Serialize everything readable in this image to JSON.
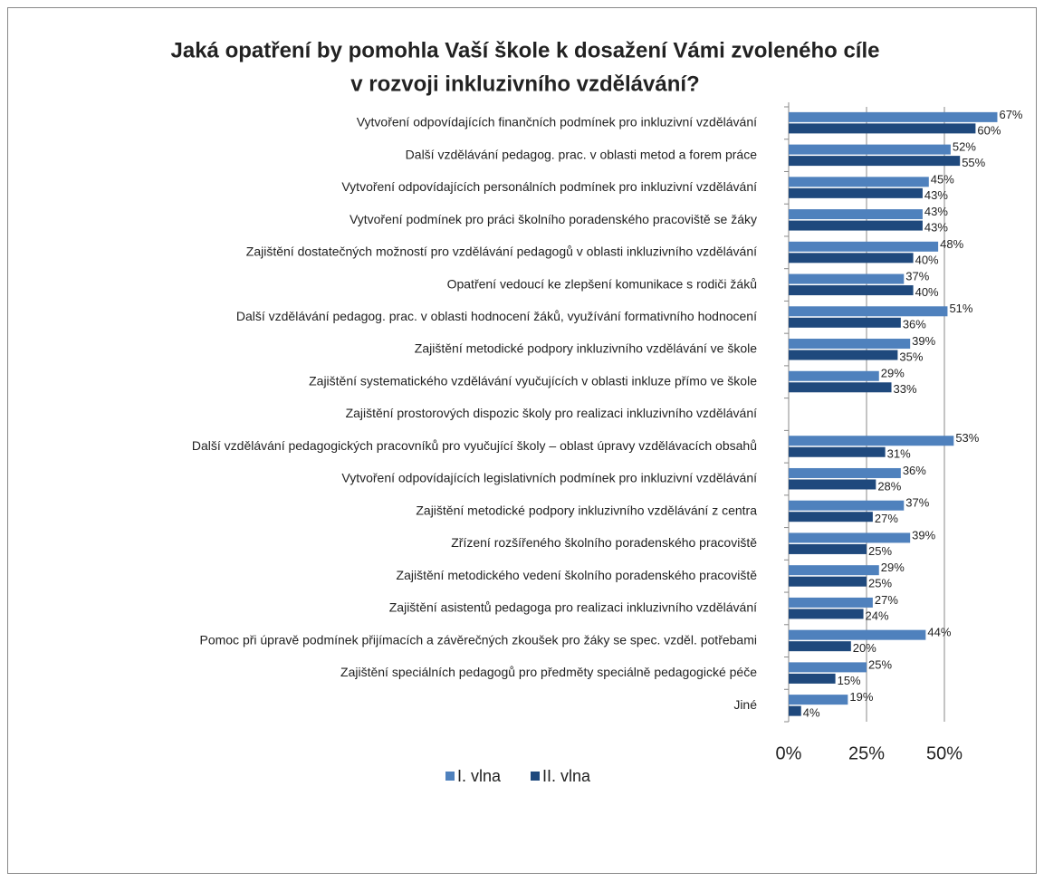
{
  "chart_data": {
    "type": "bar",
    "orientation": "horizontal",
    "title": [
      "Jaká opatření by pomohla Vaší škole k dosažení Vámi zvoleného cíle",
      "v rozvoji inkluzivního vzdělávání?"
    ],
    "categories": [
      "Vytvoření odpovídajících finančních podmínek pro inkluzivní vzdělávání",
      "Další vzdělávání pedagog. prac. v oblasti metod a forem práce",
      "Vytvoření odpovídajících personálních podmínek pro inkluzivní vzdělávání",
      "Vytvoření podmínek pro práci školního poradenského pracoviště se žáky",
      "Zajištění dostatečných možností pro vzdělávání pedagogů v oblasti inkluzivního vzdělávání",
      "Opatření vedoucí ke zlepšení komunikace s rodiči žáků",
      "Další vzdělávání pedagog. prac. v oblasti hodnocení žáků, využívání formativního hodnocení",
      "Zajištění metodické podpory inkluzivního vzdělávání ve škole",
      "Zajištění systematického vzdělávání vyučujících v oblasti inkluze přímo ve škole",
      "Zajištění prostorových dispozic školy pro realizaci inkluzivního vzdělávání",
      "Další vzdělávání pedagogických pracovníků pro vyučující školy – oblast úpravy vzdělávacích obsahů",
      "Vytvoření odpovídajících legislativních podmínek pro inkluzivní vzdělávání",
      "Zajištění metodické podpory inkluzivního vzdělávání z centra",
      "Zřízení rozšířeného školního poradenského pracoviště",
      "Zajištění metodického vedení školního poradenského pracoviště",
      "Zajištění asistentů pedagoga pro realizaci inkluzivního vzdělávání",
      "Pomoc při úpravě podmínek přijímacích a závěrečných zkoušek pro žáky se spec. vzděl. potřebami",
      "Zajištění speciálních pedagogů pro předměty speciálně pedagogické péče",
      "Jiné"
    ],
    "series": [
      {
        "name": "I. vlna",
        "color": "#4f81bd",
        "values": [
          67,
          52,
          45,
          43,
          48,
          37,
          51,
          39,
          29,
          null,
          53,
          36,
          37,
          39,
          29,
          27,
          44,
          25,
          19
        ],
        "value_labels": [
          "67%",
          "52%",
          "45%",
          "43%",
          "48%",
          "37%",
          "51%",
          "39%",
          "29%",
          null,
          "53%",
          "36%",
          "37%",
          "39%",
          "29%",
          "27%",
          "44%",
          "25%",
          "19%"
        ]
      },
      {
        "name": "II. vlna",
        "color": "#1f497d",
        "values": [
          60,
          55,
          43,
          43,
          40,
          40,
          36,
          35,
          33,
          null,
          31,
          28,
          27,
          25,
          25,
          24,
          20,
          15,
          4
        ],
        "value_labels": [
          "60%",
          "55%",
          "43%",
          "43%",
          "40%",
          "40%",
          "36%",
          "35%",
          "33%",
          null,
          "31%",
          "28%",
          "27%",
          "25%",
          "25%",
          "24%",
          "20%",
          "15%",
          "4%"
        ]
      }
    ],
    "xlim": [
      0,
      75
    ],
    "xticks": [
      {
        "value": 0,
        "label": "0%"
      },
      {
        "value": 25,
        "label": "25%"
      },
      {
        "value": 50,
        "label": "50%"
      }
    ],
    "grid": true,
    "legend": "bottom"
  }
}
